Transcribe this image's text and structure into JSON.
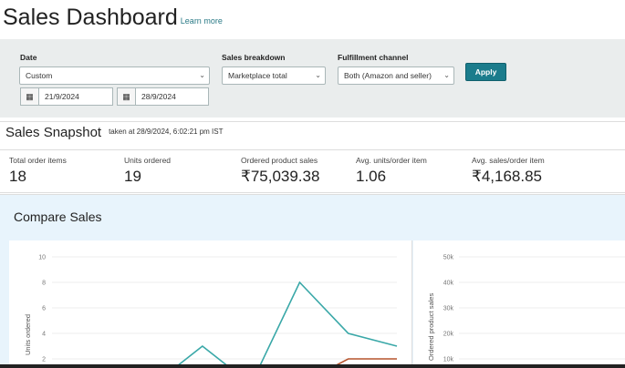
{
  "header": {
    "title": "Sales Dashboard",
    "learn_more": "Learn more"
  },
  "filters": {
    "date_label": "Date",
    "date_value": "Custom",
    "start_date": "21/9/2024",
    "end_date": "28/9/2024",
    "breakdown_label": "Sales breakdown",
    "breakdown_value": "Marketplace total",
    "channel_label": "Fulfillment channel",
    "channel_value": "Both (Amazon and seller)",
    "apply": "Apply"
  },
  "snapshot": {
    "title": "Sales Snapshot",
    "timestamp": "taken at 28/9/2024, 6:02:21 pm IST",
    "metrics": [
      {
        "label": "Total order items",
        "value": "18"
      },
      {
        "label": "Units ordered",
        "value": "19"
      },
      {
        "label": "Ordered product sales",
        "value": "₹75,039.38"
      },
      {
        "label": "Avg. units/order item",
        "value": "1.06"
      },
      {
        "label": "Avg. sales/order item",
        "value": "₹4,168.85"
      }
    ]
  },
  "compare": {
    "title": "Compare Sales"
  },
  "colors": {
    "accent": "#1b7c8c",
    "series1": "#3aa8a8",
    "series2": "#b5532c"
  },
  "chart_data": [
    {
      "type": "line",
      "ylabel": "Units ordered",
      "ylim": [
        0,
        10
      ],
      "yticks": [
        "10",
        "8",
        "6",
        "4",
        "2"
      ],
      "grid": true,
      "series": [
        {
          "values": [
            0,
            0,
            0,
            3,
            0,
            8,
            4,
            3
          ]
        },
        {
          "values": [
            0,
            0,
            0,
            0,
            0,
            0,
            2,
            2
          ]
        }
      ]
    },
    {
      "type": "line",
      "ylabel": "Ordered product sales",
      "yticks": [
        "50k",
        "40k",
        "30k",
        "20k",
        "10k"
      ],
      "grid": true,
      "series": []
    }
  ]
}
